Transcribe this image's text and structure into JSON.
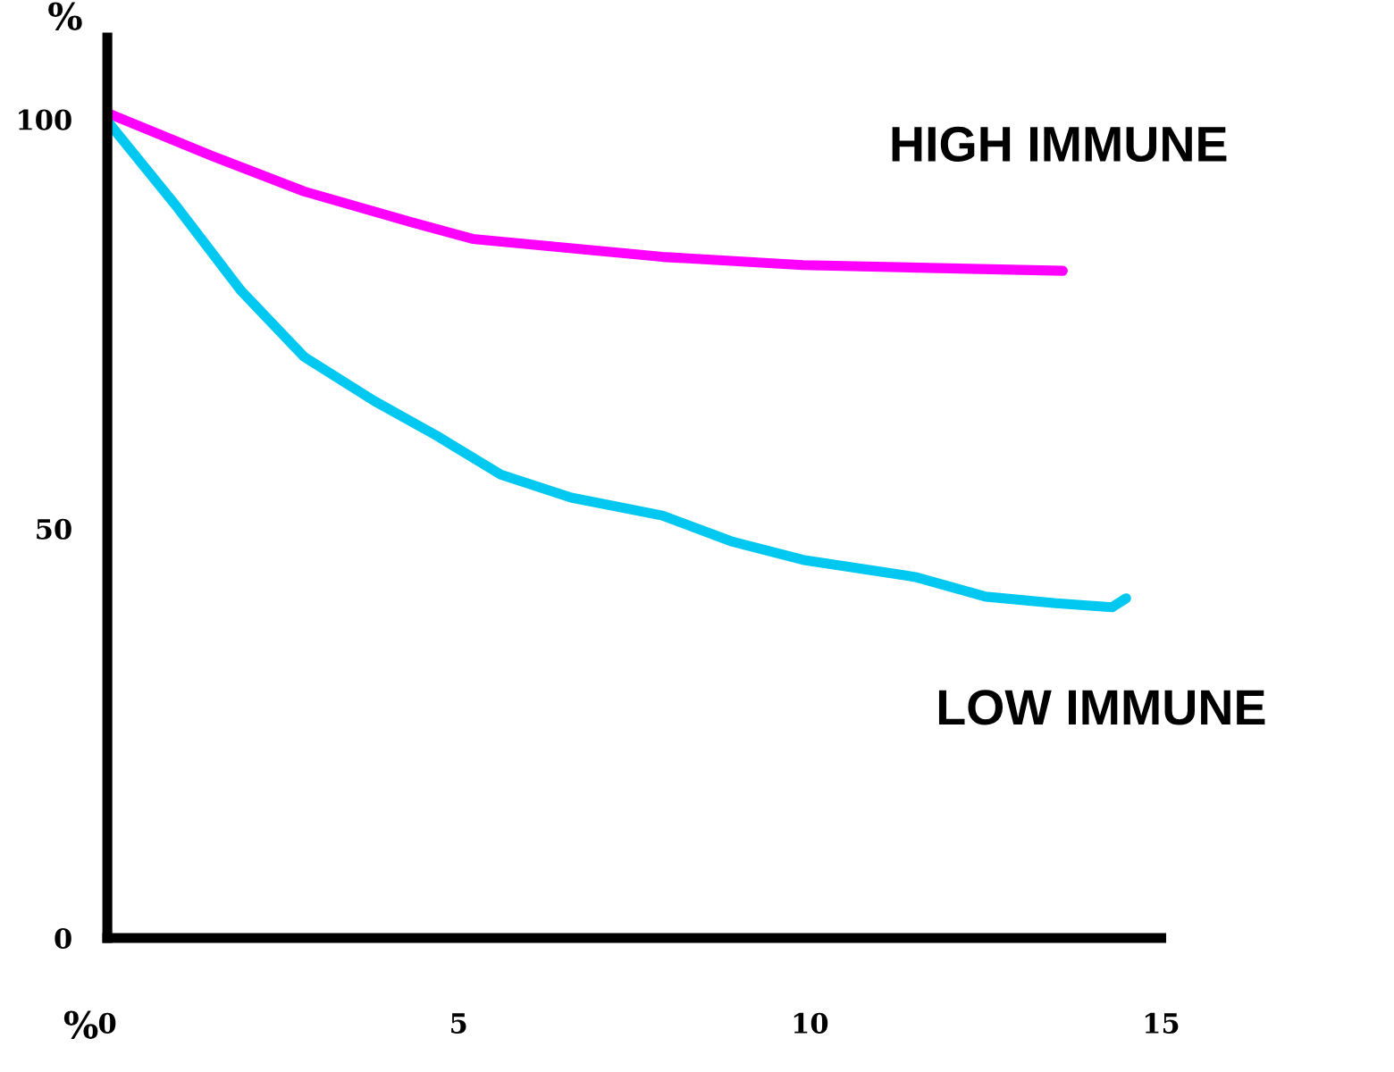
{
  "chart_data": {
    "type": "line",
    "xlabel": "%",
    "ylabel": "%",
    "xlim": [
      0,
      15
    ],
    "ylim": [
      0,
      110
    ],
    "xticks": [
      0,
      5,
      10,
      15
    ],
    "yticks": [
      0,
      50,
      100
    ],
    "grid": false,
    "legend": false,
    "marker": "none",
    "line_style": "solid",
    "series": [
      {
        "name": "HIGH IMMUNE",
        "color": "#ff00ff",
        "x": [
          0.05,
          1.5,
          2.8,
          4.3,
          5.2,
          7.9,
          9.9,
          13.6
        ],
        "values": [
          100.6,
          95.5,
          91.2,
          87.5,
          85.4,
          83.2,
          82.2,
          81.5
        ]
      },
      {
        "name": "LOW IMMUNE",
        "color": "#00c8f0",
        "x": [
          0,
          1.0,
          1.9,
          2.8,
          3.8,
          4.7,
          5.6,
          6.6,
          7.9,
          8.9,
          9.9,
          11.5,
          12.5,
          13.5,
          14.3,
          14.5
        ],
        "values": [
          99.8,
          89.2,
          79.1,
          71.0,
          65.6,
          61.3,
          56.6,
          53.8,
          51.6,
          48.4,
          46.2,
          44.1,
          41.7,
          40.9,
          40.4,
          41.5
        ]
      }
    ]
  }
}
